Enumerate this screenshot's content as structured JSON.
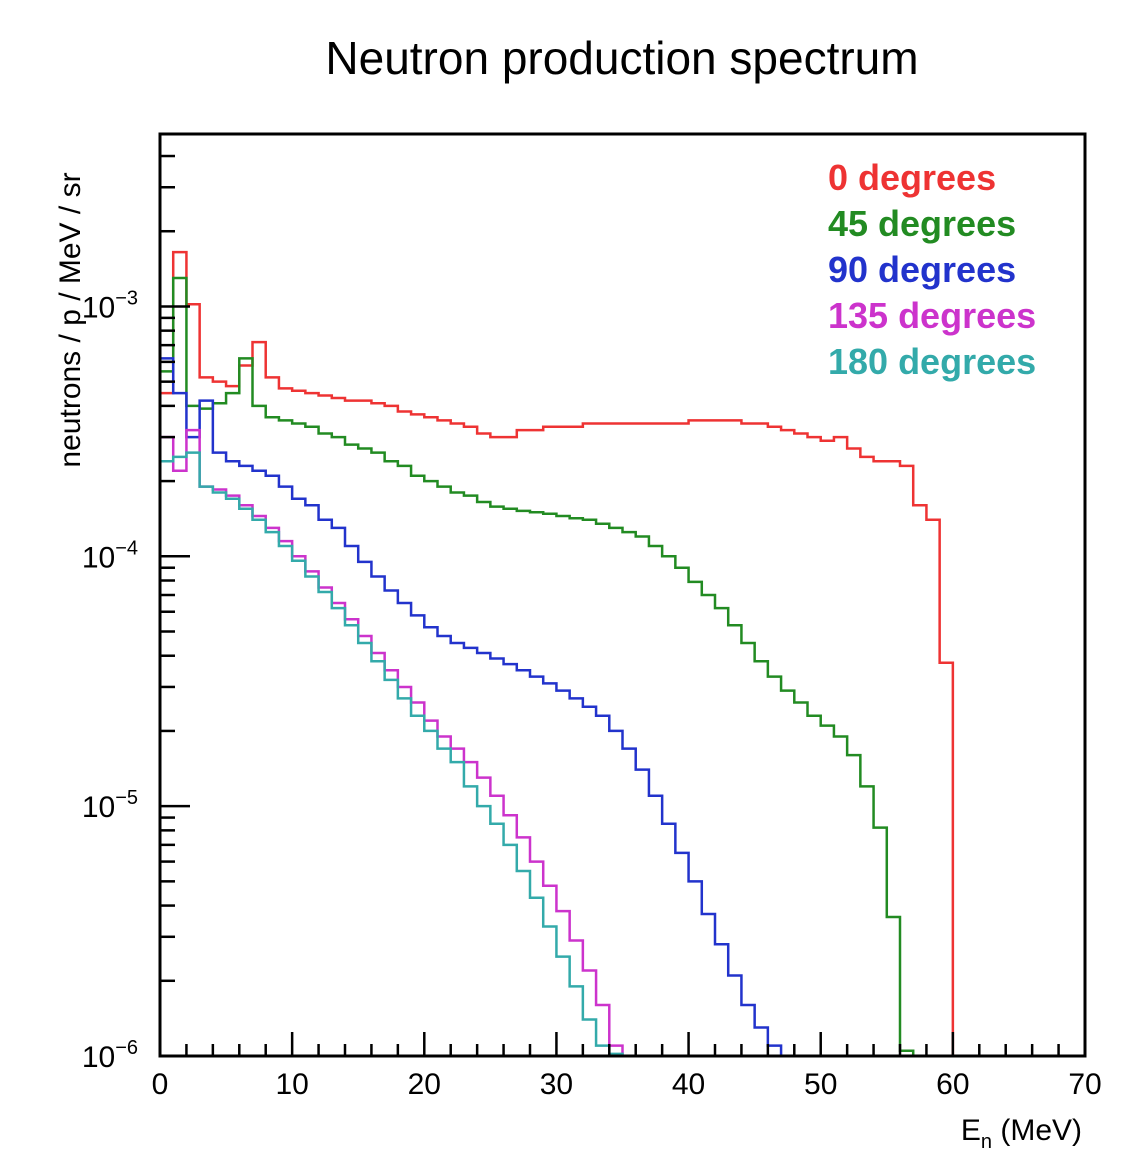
{
  "chart_data": {
    "type": "line",
    "style": "step-histogram",
    "title": "Neutron production spectrum",
    "xlabel_main": "E",
    "xlabel_sub": "n",
    "xlabel_unit": " (MeV)",
    "ylabel": "neutrons / p / MeV / sr",
    "xlim": [
      0,
      70
    ],
    "ylim": [
      1e-06,
      0.0049
    ],
    "yscale": "log",
    "bin_width": 1,
    "x_ticks": [
      0,
      10,
      20,
      30,
      40,
      50,
      60,
      70
    ],
    "y_ticks": [
      {
        "value": 1e-06,
        "base": "10",
        "exp": "−6"
      },
      {
        "value": 1e-05,
        "base": "10",
        "exp": "−5"
      },
      {
        "value": 0.0001,
        "base": "10",
        "exp": "−4"
      },
      {
        "value": 0.001,
        "base": "10",
        "exp": "−3"
      }
    ],
    "legend_position": "top-right",
    "series": [
      {
        "name": "0 degrees",
        "color": "#ee3333",
        "values": [
          0.00045,
          0.00165,
          0.00102,
          0.00052,
          0.0005,
          0.00048,
          0.00058,
          0.00072,
          0.00052,
          0.00047,
          0.00046,
          0.00045,
          0.00044,
          0.00043,
          0.00042,
          0.00042,
          0.00041,
          0.0004,
          0.00038,
          0.00037,
          0.00036,
          0.00035,
          0.00034,
          0.00033,
          0.00031,
          0.0003,
          0.0003,
          0.00032,
          0.00032,
          0.00033,
          0.00033,
          0.00033,
          0.00034,
          0.00034,
          0.00034,
          0.00034,
          0.00034,
          0.00034,
          0.00034,
          0.00034,
          0.00035,
          0.00035,
          0.00035,
          0.00035,
          0.00034,
          0.00034,
          0.00033,
          0.00032,
          0.00031,
          0.0003,
          0.00029,
          0.0003,
          0.00027,
          0.00025,
          0.00024,
          0.00024,
          0.00023,
          0.00016,
          0.00014,
          3.75e-05
        ]
      },
      {
        "name": "45 degrees",
        "color": "#228b22",
        "values": [
          0.00055,
          0.0013,
          0.0004,
          0.00039,
          0.00041,
          0.00045,
          0.00062,
          0.0004,
          0.00036,
          0.00035,
          0.00034,
          0.00033,
          0.00031,
          0.0003,
          0.00028,
          0.00027,
          0.00026,
          0.00024,
          0.00023,
          0.00021,
          0.0002,
          0.00019,
          0.00018,
          0.000175,
          0.000165,
          0.000158,
          0.000155,
          0.000152,
          0.00015,
          0.000148,
          0.000145,
          0.000142,
          0.00014,
          0.000135,
          0.00013,
          0.000125,
          0.00012,
          0.00011,
          0.0001,
          9e-05,
          7.9e-05,
          7e-05,
          6.2e-05,
          5.3e-05,
          4.5e-05,
          3.8e-05,
          3.3e-05,
          2.9e-05,
          2.6e-05,
          2.3e-05,
          2.1e-05,
          1.9e-05,
          1.6e-05,
          1.2e-05,
          8.2e-06,
          3.6e-06,
          1.05e-06
        ]
      },
      {
        "name": "90 degrees",
        "color": "#2233cc",
        "values": [
          0.00062,
          0.00045,
          0.0003,
          0.00042,
          0.00026,
          0.00024,
          0.00023,
          0.00022,
          0.00021,
          0.00019,
          0.00017,
          0.00016,
          0.00014,
          0.00013,
          0.00011,
          9.5e-05,
          8.3e-05,
          7.3e-05,
          6.5e-05,
          5.8e-05,
          5.2e-05,
          4.8e-05,
          4.5e-05,
          4.3e-05,
          4.1e-05,
          3.9e-05,
          3.7e-05,
          3.5e-05,
          3.3e-05,
          3.1e-05,
          2.9e-05,
          2.7e-05,
          2.5e-05,
          2.3e-05,
          2e-05,
          1.7e-05,
          1.4e-05,
          1.1e-05,
          8.5e-06,
          6.5e-06,
          5e-06,
          3.7e-06,
          2.8e-06,
          2.1e-06,
          1.6e-06,
          1.3e-06,
          1.1e-06
        ]
      },
      {
        "name": "135 degrees",
        "color": "#cc33cc",
        "values": [
          0.0003,
          0.00022,
          0.00032,
          0.00019,
          0.000185,
          0.000175,
          0.00016,
          0.000145,
          0.00013,
          0.000115,
          0.0001,
          8.7e-05,
          7.5e-05,
          6.5e-05,
          5.6e-05,
          4.8e-05,
          4.1e-05,
          3.5e-05,
          3e-05,
          2.6e-05,
          2.2e-05,
          1.9e-05,
          1.7e-05,
          1.5e-05,
          1.3e-05,
          1.1e-05,
          9.2e-06,
          7.5e-06,
          6e-06,
          4.8e-06,
          3.8e-06,
          2.9e-06,
          2.2e-06,
          1.6e-06,
          1.1e-06
        ]
      },
      {
        "name": "180 degrees",
        "color": "#33aaaa",
        "values": [
          0.00024,
          0.00025,
          0.00026,
          0.00019,
          0.00018,
          0.00017,
          0.000155,
          0.00014,
          0.000125,
          0.00011,
          9.6e-05,
          8.3e-05,
          7.2e-05,
          6.2e-05,
          5.3e-05,
          4.5e-05,
          3.8e-05,
          3.2e-05,
          2.7e-05,
          2.3e-05,
          2e-05,
          1.7e-05,
          1.5e-05,
          1.2e-05,
          1e-05,
          8.5e-06,
          7e-06,
          5.5e-06,
          4.3e-06,
          3.3e-06,
          2.5e-06,
          1.9e-06,
          1.4e-06,
          1.1e-06,
          1.02e-06
        ]
      }
    ]
  }
}
